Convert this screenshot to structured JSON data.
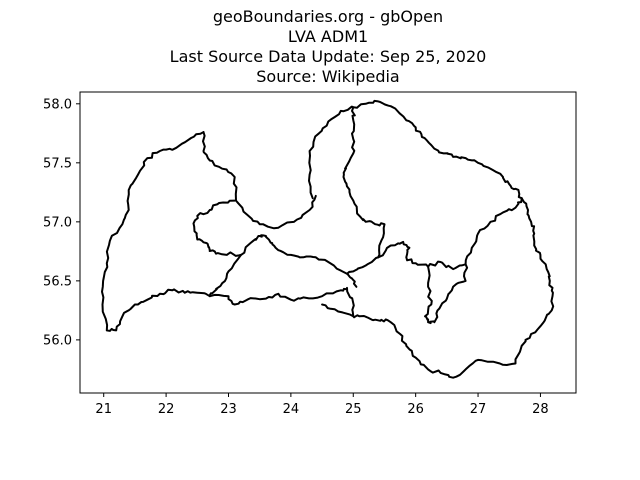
{
  "title_lines": [
    "geoBoundaries.org - gbOpen",
    "LVA ADM1",
    "Last Source Data Update: Sep 25, 2020",
    "Source: Wikipedia"
  ],
  "chart_data": {
    "type": "map",
    "title": "geoBoundaries.org - gbOpen\nLVA ADM1\nLast Source Data Update: Sep 25, 2020\nSource: Wikipedia",
    "xlim": [
      20.62,
      28.57
    ],
    "ylim": [
      55.55,
      58.1
    ],
    "xticks": [
      21,
      22,
      23,
      24,
      25,
      26,
      27,
      28
    ],
    "yticks": [
      56.0,
      56.5,
      57.0,
      57.5,
      58.0
    ],
    "xtick_labels": [
      "21",
      "22",
      "23",
      "24",
      "25",
      "26",
      "27",
      "28"
    ],
    "ytick_labels": [
      "56.0",
      "56.5",
      "57.0",
      "57.5",
      "58.0"
    ],
    "grid": false,
    "regions": [
      {
        "name": "region-courland",
        "coords": [
          [
            22.6,
            57.76
          ],
          [
            22.4,
            57.71
          ],
          [
            22.1,
            57.61
          ],
          [
            21.9,
            57.6
          ],
          [
            21.7,
            57.54
          ],
          [
            21.55,
            57.4
          ],
          [
            21.4,
            57.27
          ],
          [
            21.4,
            57.1
          ],
          [
            21.3,
            56.98
          ],
          [
            21.1,
            56.84
          ],
          [
            21.05,
            56.65
          ],
          [
            20.99,
            56.5
          ],
          [
            20.98,
            56.3
          ],
          [
            21.05,
            56.08
          ],
          [
            21.2,
            56.08
          ],
          [
            21.3,
            56.2
          ],
          [
            21.5,
            56.3
          ],
          [
            21.7,
            56.34
          ],
          [
            21.9,
            56.39
          ],
          [
            22.1,
            56.42
          ],
          [
            22.3,
            56.4
          ],
          [
            22.5,
            56.4
          ],
          [
            22.7,
            56.37
          ],
          [
            23.0,
            56.37
          ],
          [
            23.1,
            56.3
          ],
          [
            23.3,
            56.34
          ],
          [
            23.6,
            56.35
          ],
          [
            23.8,
            56.39
          ],
          [
            24.0,
            56.34
          ],
          [
            24.2,
            56.36
          ],
          [
            24.5,
            56.37
          ],
          [
            24.8,
            56.42
          ],
          [
            24.9,
            56.44
          ],
          [
            25.0,
            56.31
          ],
          [
            25.0,
            56.2
          ],
          [
            24.7,
            56.26
          ],
          [
            24.5,
            56.3
          ]
        ]
      },
      {
        "name": "region-courland-north",
        "coords": [
          [
            22.6,
            57.76
          ],
          [
            22.6,
            57.6
          ],
          [
            22.7,
            57.52
          ],
          [
            22.9,
            57.45
          ],
          [
            23.1,
            57.38
          ],
          [
            23.12,
            57.18
          ],
          [
            23.3,
            57.06
          ],
          [
            23.5,
            56.98
          ],
          [
            23.8,
            56.95
          ],
          [
            24.1,
            57.02
          ],
          [
            24.3,
            57.1
          ],
          [
            24.4,
            57.22
          ]
        ]
      },
      {
        "name": "region-zemgale",
        "coords": [
          [
            23.1,
            57.18
          ],
          [
            22.85,
            57.16
          ],
          [
            22.7,
            57.1
          ],
          [
            22.5,
            57.05
          ],
          [
            22.45,
            56.96
          ],
          [
            22.5,
            56.85
          ],
          [
            22.65,
            56.82
          ],
          [
            22.7,
            56.76
          ],
          [
            22.8,
            56.73
          ],
          [
            23.0,
            56.73
          ],
          [
            23.2,
            56.72
          ],
          [
            23.4,
            56.84
          ],
          [
            23.5,
            56.88
          ],
          [
            23.6,
            56.88
          ],
          [
            23.7,
            56.82
          ],
          [
            23.8,
            56.76
          ],
          [
            24.0,
            56.72
          ],
          [
            24.2,
            56.7
          ],
          [
            24.4,
            56.7
          ],
          [
            24.6,
            56.66
          ],
          [
            24.9,
            56.56
          ],
          [
            25.0,
            56.58
          ],
          [
            25.2,
            56.63
          ],
          [
            25.4,
            56.7
          ],
          [
            25.6,
            56.8
          ],
          [
            25.8,
            56.83
          ],
          [
            25.9,
            56.78
          ],
          [
            25.85,
            56.7
          ],
          [
            26.0,
            56.65
          ],
          [
            26.2,
            56.62
          ],
          [
            26.4,
            56.66
          ],
          [
            26.6,
            56.6
          ],
          [
            26.8,
            56.64
          ],
          [
            26.9,
            56.78
          ],
          [
            27.0,
            56.9
          ],
          [
            27.2,
            57.0
          ],
          [
            27.4,
            57.08
          ],
          [
            27.6,
            57.12
          ],
          [
            27.7,
            57.2
          ]
        ],
        "branch_a": [
          [
            23.2,
            56.72
          ],
          [
            23.0,
            56.58
          ],
          [
            22.9,
            56.48
          ],
          [
            22.75,
            56.4
          ],
          [
            22.7,
            56.37
          ]
        ],
        "branch_b": [
          [
            24.9,
            56.56
          ],
          [
            24.98,
            56.52
          ],
          [
            25.05,
            56.45
          ]
        ]
      },
      {
        "name": "region-riga",
        "coords": [
          [
            24.35,
            57.2
          ],
          [
            24.3,
            57.4
          ],
          [
            24.3,
            57.6
          ],
          [
            24.45,
            57.75
          ],
          [
            24.6,
            57.85
          ],
          [
            24.8,
            57.94
          ],
          [
            25.0,
            57.97
          ],
          [
            25.0,
            57.86
          ],
          [
            25.0,
            57.7
          ],
          [
            25.0,
            57.58
          ],
          [
            24.9,
            57.48
          ],
          [
            24.85,
            57.4
          ],
          [
            24.9,
            57.3
          ],
          [
            25.0,
            57.18
          ],
          [
            25.1,
            57.05
          ],
          [
            25.2,
            57.0
          ],
          [
            25.35,
            56.98
          ],
          [
            25.5,
            56.98
          ],
          [
            25.45,
            56.84
          ],
          [
            25.4,
            56.7
          ]
        ]
      },
      {
        "name": "region-vidzeme",
        "coords": [
          [
            25.0,
            57.97
          ],
          [
            25.2,
            58.0
          ],
          [
            25.4,
            58.02
          ],
          [
            25.6,
            57.98
          ],
          [
            25.85,
            57.86
          ],
          [
            26.0,
            57.8
          ],
          [
            26.1,
            57.72
          ],
          [
            26.25,
            57.65
          ],
          [
            26.45,
            57.58
          ],
          [
            26.6,
            57.55
          ],
          [
            26.8,
            57.54
          ],
          [
            27.0,
            57.5
          ],
          [
            27.2,
            57.45
          ],
          [
            27.4,
            57.38
          ],
          [
            27.5,
            57.32
          ],
          [
            27.6,
            57.28
          ],
          [
            27.7,
            57.2
          ]
        ]
      },
      {
        "name": "region-latgale",
        "coords": [
          [
            27.7,
            57.2
          ],
          [
            27.8,
            57.1
          ],
          [
            27.85,
            57.0
          ],
          [
            27.9,
            56.9
          ],
          [
            27.9,
            56.8
          ],
          [
            28.0,
            56.72
          ],
          [
            28.1,
            56.6
          ],
          [
            28.15,
            56.5
          ],
          [
            28.2,
            56.4
          ],
          [
            28.18,
            56.25
          ],
          [
            28.05,
            56.15
          ],
          [
            27.85,
            56.05
          ],
          [
            27.7,
            55.95
          ],
          [
            27.6,
            55.8
          ],
          [
            27.35,
            55.8
          ],
          [
            27.0,
            55.83
          ],
          [
            26.8,
            55.75
          ],
          [
            26.6,
            55.68
          ],
          [
            26.4,
            55.72
          ],
          [
            26.2,
            55.75
          ],
          [
            26.0,
            55.85
          ],
          [
            25.85,
            55.95
          ],
          [
            25.75,
            56.05
          ],
          [
            25.6,
            56.15
          ],
          [
            25.45,
            56.17
          ],
          [
            25.3,
            56.17
          ],
          [
            25.1,
            56.2
          ],
          [
            25.0,
            56.2
          ]
        ]
      },
      {
        "name": "region-selonia-east",
        "coords": [
          [
            26.2,
            56.62
          ],
          [
            26.2,
            56.45
          ],
          [
            26.25,
            56.3
          ],
          [
            26.15,
            56.2
          ],
          [
            26.2,
            56.15
          ],
          [
            26.3,
            56.15
          ],
          [
            26.35,
            56.25
          ],
          [
            26.5,
            56.35
          ],
          [
            26.6,
            56.45
          ],
          [
            26.8,
            56.5
          ],
          [
            26.8,
            56.64
          ]
        ]
      }
    ]
  }
}
